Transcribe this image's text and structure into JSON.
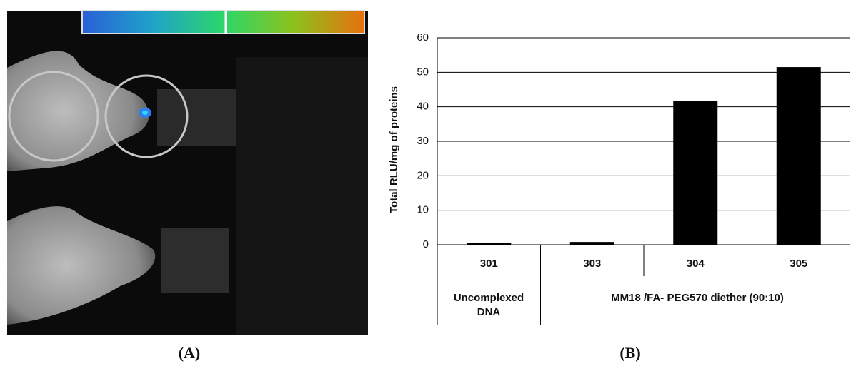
{
  "panel_labels": [
    "(A)",
    "(B)"
  ],
  "chart_data": {
    "type": "bar",
    "y_label": "Total RLU/mg of proteins",
    "categories": [
      "301",
      "303",
      "304",
      "305"
    ],
    "values": [
      0.5,
      0.8,
      41.7,
      51.5
    ],
    "color": "#000000",
    "group_labels": [
      [
        "Uncomplexed",
        "DNA"
      ],
      [
        "MM18 /FA- PEG570 diether (90:10)"
      ]
    ],
    "ylim": [
      0,
      60
    ],
    "yticks": [
      0,
      10,
      20,
      30,
      40,
      50,
      60
    ],
    "grid": true
  }
}
